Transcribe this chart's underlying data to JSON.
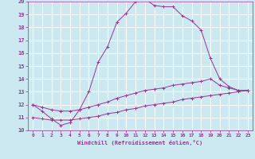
{
  "xlabel": "Windchill (Refroidissement éolien,°C)",
  "bg_color": "#cce8f0",
  "line_color": "#993399",
  "grid_color": "#ffffff",
  "xlim": [
    -0.5,
    23.5
  ],
  "ylim": [
    10,
    20
  ],
  "xticks": [
    0,
    1,
    2,
    3,
    4,
    5,
    6,
    7,
    8,
    9,
    10,
    11,
    12,
    13,
    14,
    15,
    16,
    17,
    18,
    19,
    20,
    21,
    22,
    23
  ],
  "yticks": [
    10,
    11,
    12,
    13,
    14,
    15,
    16,
    17,
    18,
    19,
    20
  ],
  "curve1_x": [
    0,
    1,
    2,
    3,
    4,
    5,
    6,
    7,
    8,
    9,
    10,
    11,
    12,
    13,
    14,
    15,
    16,
    17,
    18,
    19,
    20,
    21,
    22,
    23
  ],
  "curve1_y": [
    12.0,
    11.5,
    10.9,
    10.4,
    10.6,
    11.6,
    13.0,
    15.3,
    16.5,
    18.4,
    19.1,
    20.0,
    20.2,
    19.7,
    19.6,
    19.6,
    18.9,
    18.5,
    17.8,
    15.6,
    14.0,
    13.4,
    13.1,
    13.1
  ],
  "curve2_x": [
    0,
    1,
    2,
    3,
    4,
    5,
    6,
    7,
    8,
    9,
    10,
    11,
    12,
    13,
    14,
    15,
    16,
    17,
    18,
    19,
    20,
    21,
    22,
    23
  ],
  "curve2_y": [
    12.0,
    11.8,
    11.6,
    11.5,
    11.5,
    11.6,
    11.8,
    12.0,
    12.2,
    12.5,
    12.7,
    12.9,
    13.1,
    13.2,
    13.3,
    13.5,
    13.6,
    13.7,
    13.8,
    14.0,
    13.5,
    13.3,
    13.1,
    13.1
  ],
  "curve3_x": [
    0,
    1,
    2,
    3,
    4,
    5,
    6,
    7,
    8,
    9,
    10,
    11,
    12,
    13,
    14,
    15,
    16,
    17,
    18,
    19,
    20,
    21,
    22,
    23
  ],
  "curve3_y": [
    11.0,
    10.9,
    10.8,
    10.8,
    10.8,
    10.9,
    11.0,
    11.1,
    11.3,
    11.4,
    11.6,
    11.7,
    11.9,
    12.0,
    12.1,
    12.2,
    12.4,
    12.5,
    12.6,
    12.7,
    12.8,
    12.9,
    13.0,
    13.1
  ]
}
